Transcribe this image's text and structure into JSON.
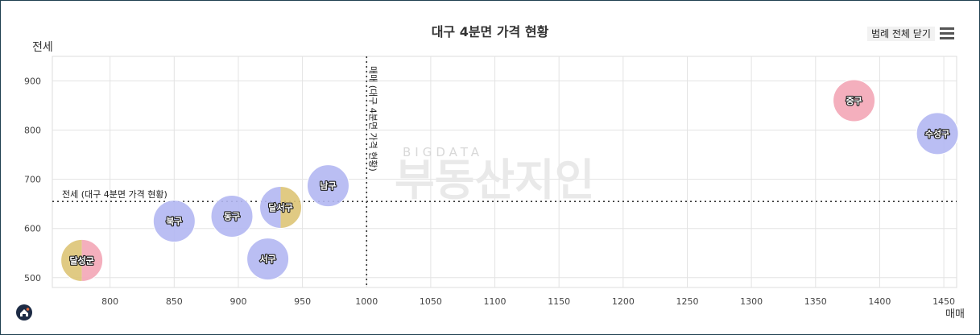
{
  "header": {
    "title": "대구 4분면 가격 현황",
    "legend_button": "범례 전체 닫기",
    "menu_icon": "hamburger-menu-icon"
  },
  "watermark": {
    "small": "BIGDATA",
    "large": "부동산지인"
  },
  "logo_icon": "house-logo-icon",
  "colors": {
    "default": "#b3b7f2",
    "jung": "#f3a6b6",
    "gold": "#ddc475",
    "grid": "#e3e3e3"
  },
  "chart_data": {
    "type": "scatter",
    "title": "대구 4분면 가격 현황",
    "xlabel": "매매",
    "ylabel": "전세",
    "xlim": [
      755,
      1460
    ],
    "ylim": [
      480,
      950
    ],
    "xticks": [
      800,
      850,
      900,
      950,
      1000,
      1050,
      1100,
      1150,
      1200,
      1250,
      1300,
      1350,
      1400,
      1450
    ],
    "yticks": [
      500,
      600,
      700,
      800,
      900
    ],
    "grid": true,
    "reference_lines": {
      "x": {
        "value": 1000,
        "label": "매매 (대구 4분면 가격 현황)"
      },
      "y": {
        "value": 655,
        "label": "전세 (대구 4분면 가격 현황)"
      }
    },
    "points": [
      {
        "name": "달성군",
        "x": 778,
        "y": 535,
        "colors": [
          "#ddc475",
          "#f3a6b6"
        ]
      },
      {
        "name": "북구",
        "x": 850,
        "y": 615,
        "colors": [
          "#b3b7f2"
        ]
      },
      {
        "name": "동구",
        "x": 895,
        "y": 625,
        "colors": [
          "#b3b7f2"
        ]
      },
      {
        "name": "서구",
        "x": 923,
        "y": 538,
        "colors": [
          "#b3b7f2"
        ]
      },
      {
        "name": "달서구",
        "x": 933,
        "y": 643,
        "colors": [
          "#b3b7f2",
          "#ddc475"
        ]
      },
      {
        "name": "남구",
        "x": 970,
        "y": 687,
        "colors": [
          "#b3b7f2"
        ]
      },
      {
        "name": "중구",
        "x": 1380,
        "y": 860,
        "colors": [
          "#f3a6b6"
        ]
      },
      {
        "name": "수성구",
        "x": 1445,
        "y": 793,
        "colors": [
          "#b3b7f2"
        ]
      }
    ]
  }
}
